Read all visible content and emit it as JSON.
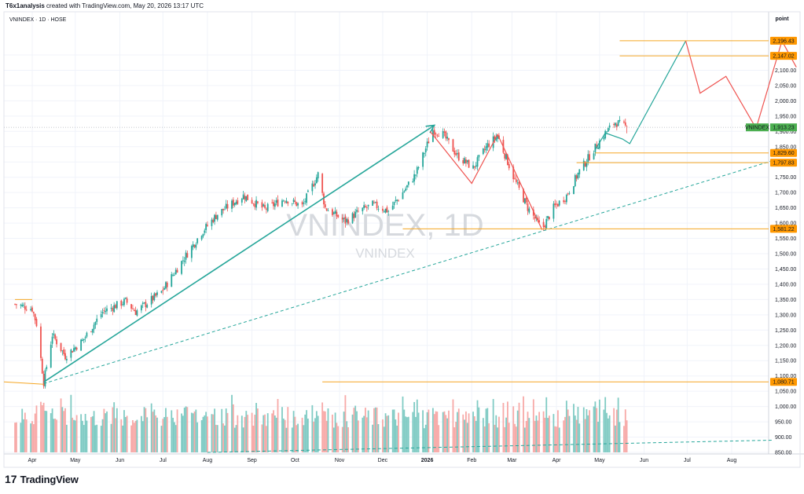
{
  "header": {
    "author": "T6x1analysis",
    "created_text": "created with TradingView.com, May 20, 2026 13:17 UTC"
  },
  "symbol_label": "VNINDEX · 1D · HOSE",
  "watermark": {
    "main": "VNINDEX, 1D",
    "sub": "VNINDEX"
  },
  "price_axis_title": "point",
  "footer": {
    "brand": "TradingView",
    "logo_glyph": "17"
  },
  "colors": {
    "up": "#26a69a",
    "down": "#ef5350",
    "up_volume": "#80cbc4",
    "down_volume": "#f7a9a7",
    "level": "#f5a623",
    "trend": "#26a69a",
    "badge_bg": "#ff9800",
    "last_bg": "#4caf50"
  },
  "chart_data": {
    "type": "candlestick",
    "symbol": "VNINDEX",
    "timeframe": "1D",
    "exchange": "HOSE",
    "ylim": [
      850,
      2250
    ],
    "y_ticks": [
      850,
      900,
      950,
      1000,
      1050,
      1100,
      1150,
      1200,
      1250,
      1300,
      1350,
      1400,
      1450,
      1500,
      1550,
      1600,
      1650,
      1700,
      1750,
      1800,
      1850,
      1900,
      1950,
      2000,
      2050,
      2100,
      2150
    ],
    "y_tick_labels": [
      "850.00",
      "900.00",
      "950.00",
      "1,000.00",
      "1,050.00",
      "1,100.00",
      "1,150.00",
      "1,200.00",
      "1,250.00",
      "1,300.00",
      "1,350.00",
      "1,400.00",
      "1,450.00",
      "1,500.00",
      "1,550.00",
      "1,600.00",
      "1,650.00",
      "1,700.00",
      "1,750.00",
      "1,800.00",
      "1,850.00",
      "1,900.00",
      "1,950.00",
      "2,000.00",
      "2,050.00",
      "2,100.00",
      "2,150.00"
    ],
    "x_tick_labels": [
      "Apr",
      "May",
      "Jun",
      "Jul",
      "Aug",
      "Sep",
      "Oct",
      "Nov",
      "Dec",
      "2026",
      "Feb",
      "Mar",
      "Apr",
      "May",
      "Jun",
      "Jul",
      "Aug"
    ],
    "price_path": [
      [
        "2025-03-20",
        1335
      ],
      [
        "2025-04-01",
        1320
      ],
      [
        "2025-04-04",
        1270
      ],
      [
        "2025-04-09",
        1080
      ],
      [
        "2025-04-15",
        1235
      ],
      [
        "2025-04-24",
        1165
      ],
      [
        "2025-05-06",
        1215
      ],
      [
        "2025-05-20",
        1310
      ],
      [
        "2025-06-05",
        1345
      ],
      [
        "2025-06-12",
        1310
      ],
      [
        "2025-06-30",
        1375
      ],
      [
        "2025-07-15",
        1480
      ],
      [
        "2025-07-28",
        1570
      ],
      [
        "2025-08-08",
        1630
      ],
      [
        "2025-08-26",
        1690
      ],
      [
        "2025-09-10",
        1645
      ],
      [
        "2025-09-24",
        1680
      ],
      [
        "2025-10-06",
        1655
      ],
      [
        "2025-10-17",
        1760
      ],
      [
        "2025-10-22",
        1650
      ],
      [
        "2025-11-05",
        1605
      ],
      [
        "2025-11-15",
        1640
      ],
      [
        "2025-11-24",
        1660
      ],
      [
        "2025-12-05",
        1640
      ],
      [
        "2025-12-15",
        1700
      ],
      [
        "2025-12-24",
        1760
      ],
      [
        "2026-01-05",
        1905
      ],
      [
        "2026-01-12",
        1890
      ],
      [
        "2026-01-22",
        1820
      ],
      [
        "2026-02-02",
        1780
      ],
      [
        "2026-02-12",
        1855
      ],
      [
        "2026-02-19",
        1885
      ],
      [
        "2026-03-03",
        1740
      ],
      [
        "2026-03-12",
        1650
      ],
      [
        "2026-03-22",
        1580
      ],
      [
        "2026-03-30",
        1650
      ],
      [
        "2026-04-08",
        1690
      ],
      [
        "2026-04-17",
        1770
      ],
      [
        "2026-04-27",
        1840
      ],
      [
        "2026-05-05",
        1895
      ],
      [
        "2026-05-12",
        1930
      ],
      [
        "2026-05-20",
        1913
      ]
    ],
    "volume_axis": [
      850,
      1000
    ],
    "last_price": 1913.23,
    "last_price_label": "1,913.23",
    "levels": [
      {
        "value": 2196.43,
        "label": "2,196.43"
      },
      {
        "value": 2147.02,
        "label": "2,147.02"
      },
      {
        "value": 1829.6,
        "label": "1,829.60"
      },
      {
        "value": 1797.83,
        "label": "1,797.83"
      },
      {
        "value": 1581.22,
        "label": "1,581.22"
      },
      {
        "value": 1080.71,
        "label": "1,080.71"
      }
    ],
    "drawings": {
      "trend_arrow": {
        "from": [
          "2025-04-09",
          1080
        ],
        "to": [
          "2026-01-06",
          1920
        ]
      },
      "dashed_trend": {
        "from": [
          "2025-04-09",
          1075
        ],
        "to": [
          "2026-08-30",
          1805
        ]
      },
      "dashed_volume": {
        "from": [
          "2025-08-01",
          850
        ],
        "to": [
          "2026-08-30",
          890
        ]
      },
      "red_zigzag": [
        [
          "2026-01-03",
          1900
        ],
        [
          "2026-02-01",
          1730
        ],
        [
          "2026-02-19",
          1890
        ],
        [
          "2026-03-22",
          1578
        ]
      ],
      "projection_teal": [
        [
          "2026-04-28",
          1840
        ],
        [
          "2026-05-05",
          1895
        ],
        [
          "2026-05-17",
          1875
        ],
        [
          "2026-05-22",
          1860
        ],
        [
          "2026-06-30",
          2196
        ]
      ],
      "projection_red": [
        [
          "2026-06-30",
          2196
        ],
        [
          "2026-07-10",
          2025
        ],
        [
          "2026-07-28",
          2080
        ],
        [
          "2026-08-18",
          1910
        ],
        [
          "2026-09-05",
          2196
        ],
        [
          "2026-09-15",
          2110
        ]
      ],
      "hline_march_2025": {
        "from": "2025-03-20",
        "to": "2025-04-01",
        "value": 1350
      }
    }
  }
}
